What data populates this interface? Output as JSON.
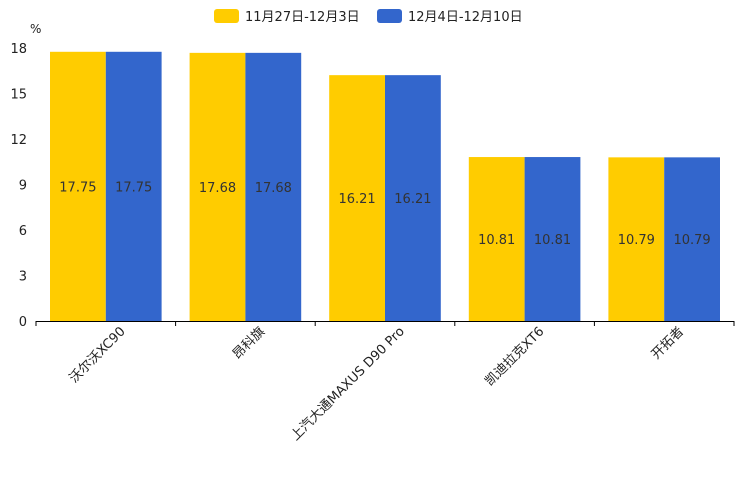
{
  "chart_data": {
    "type": "bar",
    "title": "",
    "ylabel": "%",
    "xlabel": "",
    "ylim": [
      0,
      18
    ],
    "yticks": [
      0,
      3,
      6,
      9,
      12,
      15,
      18
    ],
    "grid": false,
    "legend_position": "top-center",
    "categories": [
      "沃尔沃XC90",
      "昂科旗",
      "上汽大通MAXUS D90 Pro",
      "凯迪拉克XT6",
      "开拓者"
    ],
    "series": [
      {
        "name": "11月27日-12月3日",
        "color": "#FFCC00",
        "values": [
          17.75,
          17.68,
          16.21,
          10.81,
          10.79
        ]
      },
      {
        "name": "12月4日-12月10日",
        "color": "#3366CC",
        "values": [
          17.75,
          17.68,
          16.21,
          10.81,
          10.79
        ]
      }
    ]
  }
}
